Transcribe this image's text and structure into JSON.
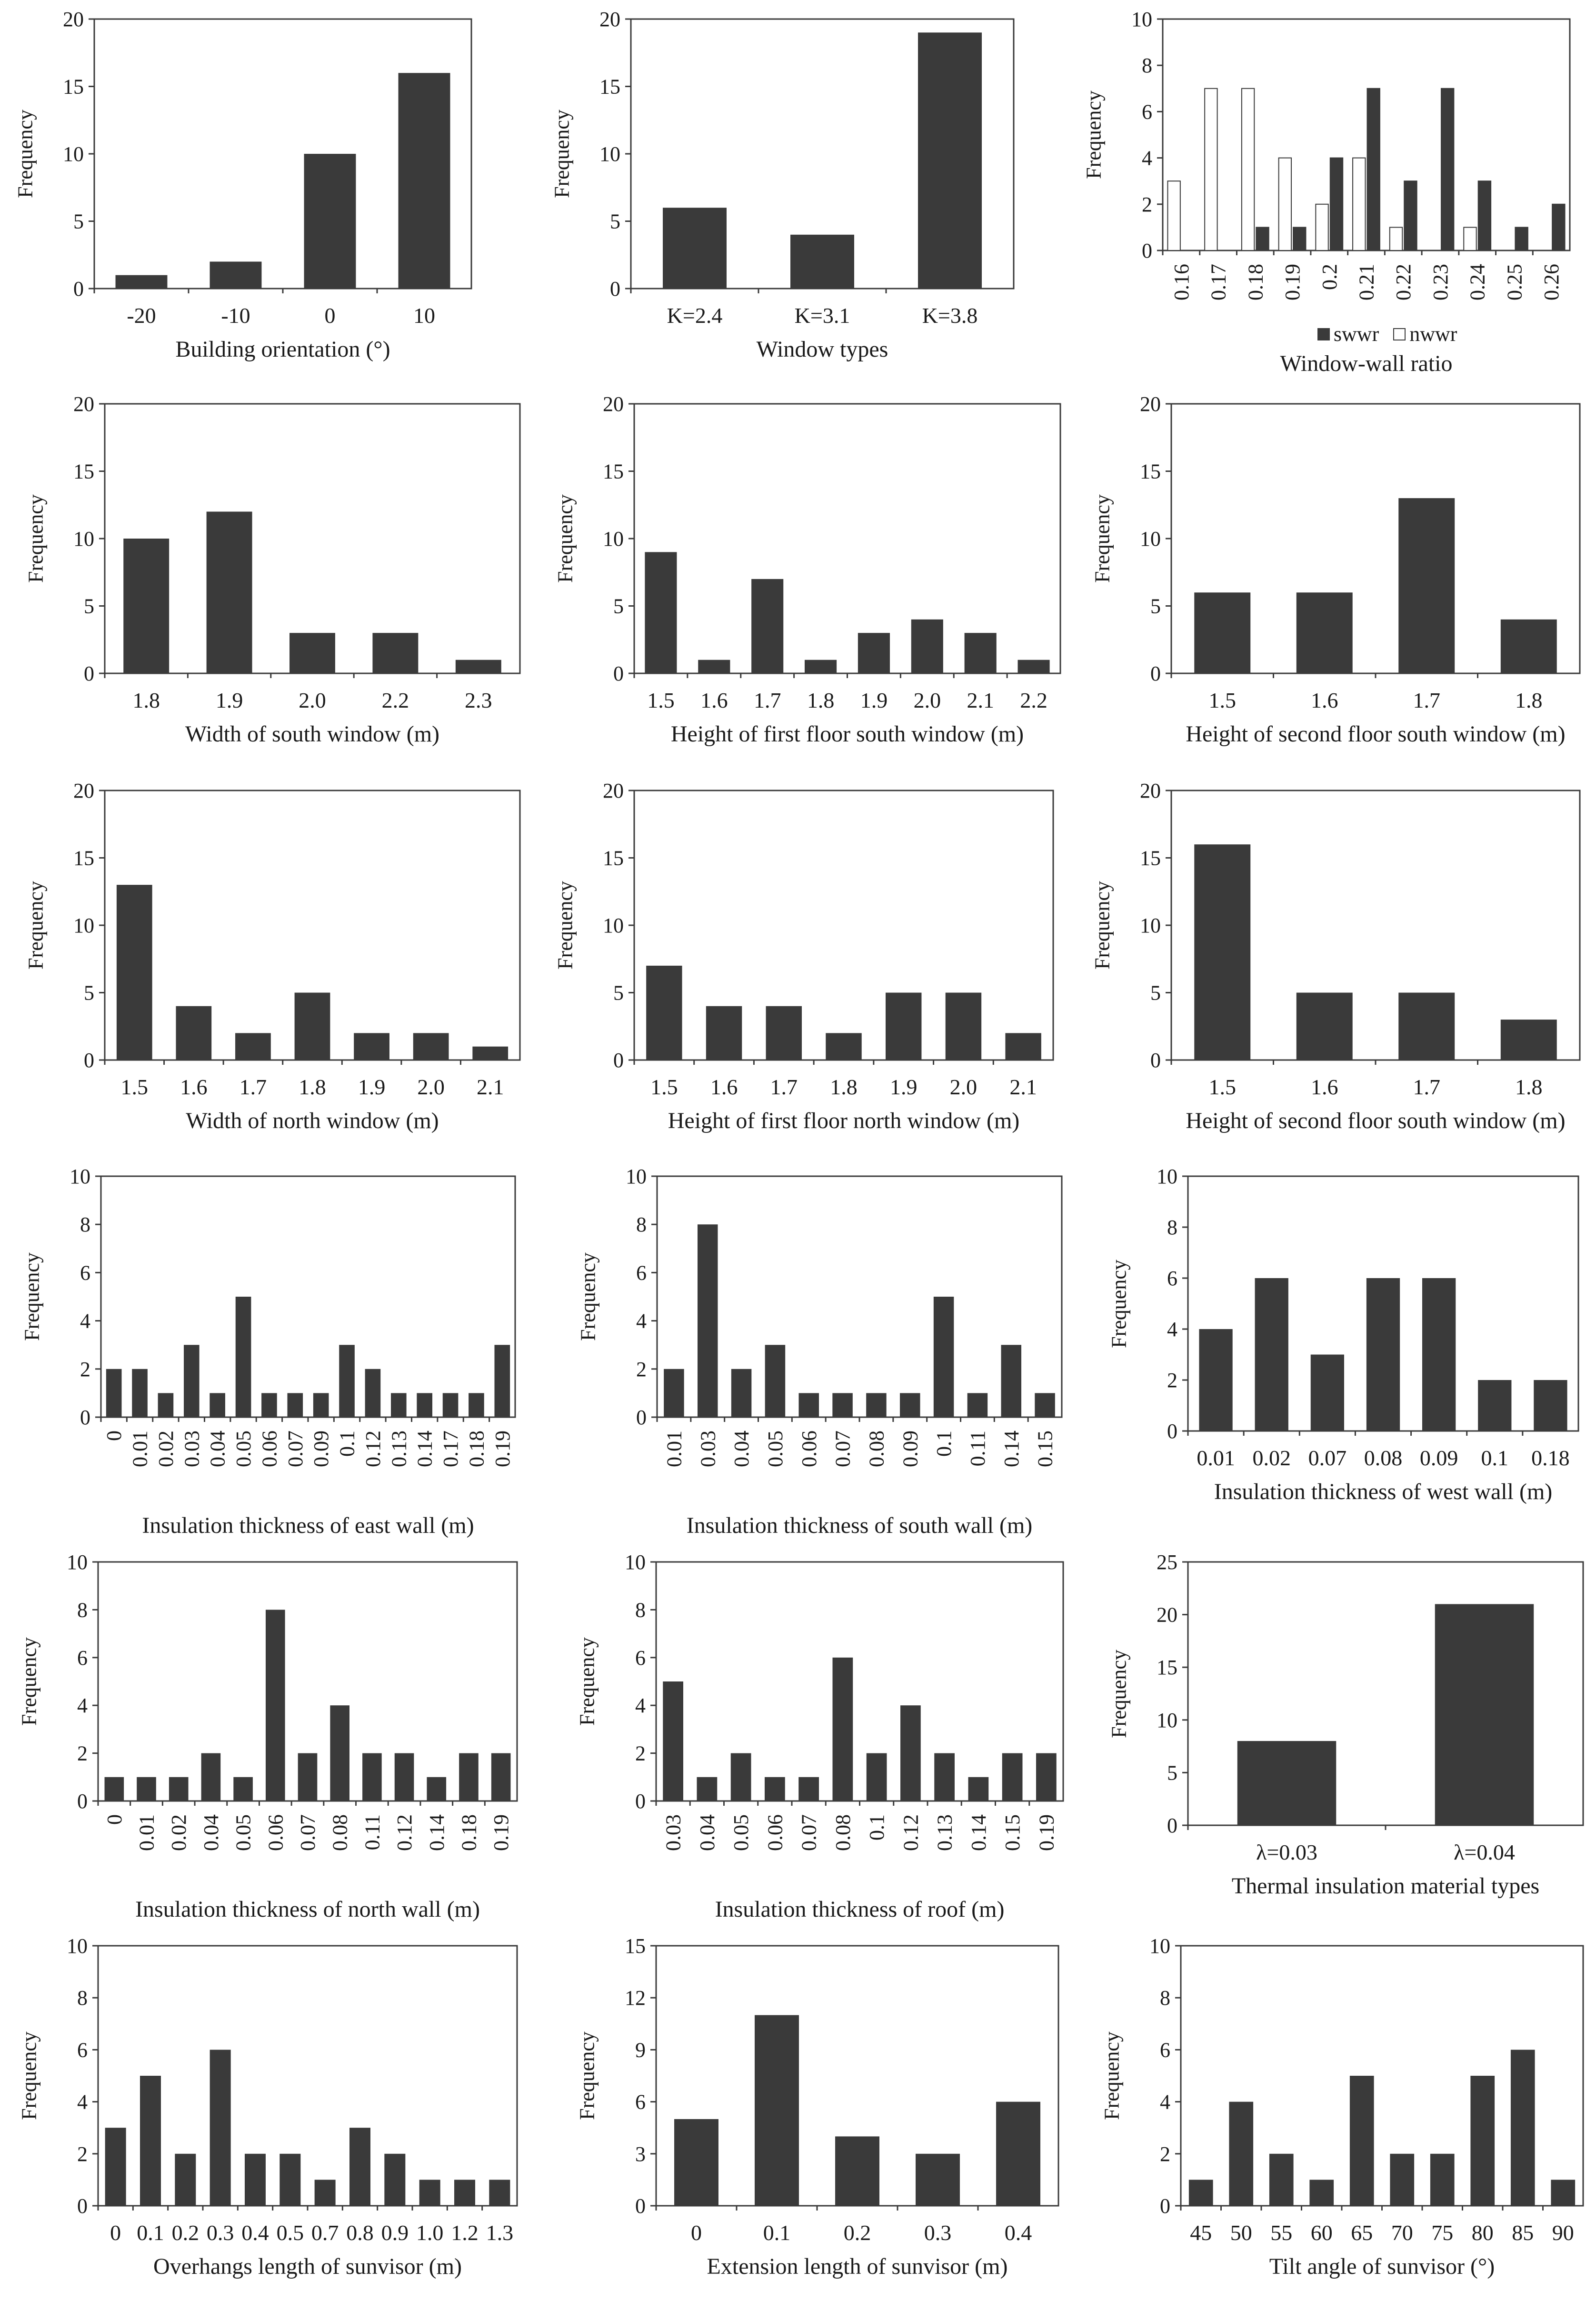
{
  "chart_data": [
    {
      "type": "bar",
      "title": "",
      "ylabel": "Frequency",
      "xlabel": "Building orientation (°)",
      "categories": [
        "-20",
        "-10",
        "0",
        "10"
      ],
      "values": [
        1,
        2,
        10,
        16
      ],
      "ylim": [
        0,
        20
      ],
      "yticks": [
        0,
        5,
        10,
        15,
        20
      ]
    },
    {
      "type": "bar",
      "title": "",
      "ylabel": "Frequency",
      "xlabel": "Window types",
      "categories": [
        "K=2.4",
        "K=3.1",
        "K=3.8"
      ],
      "values": [
        6,
        4,
        19
      ],
      "ylim": [
        0,
        20
      ],
      "yticks": [
        0,
        5,
        10,
        15,
        20
      ]
    },
    {
      "type": "bar",
      "title": "",
      "ylabel": "Frequency",
      "xlabel": "Window-wall ratio",
      "categories": [
        "0.16",
        "0.17",
        "0.18",
        "0.19",
        "0.2",
        "0.21",
        "0.22",
        "0.23",
        "0.24",
        "0.25",
        "0.26"
      ],
      "series": [
        {
          "name": "swwr",
          "color": "#3a3a3a",
          "values": [
            0,
            0,
            1,
            1,
            4,
            7,
            3,
            7,
            3,
            1,
            2
          ]
        },
        {
          "name": "nwwr",
          "color": "#ffffff",
          "values": [
            3,
            7,
            7,
            4,
            2,
            4,
            1,
            0,
            1,
            0,
            0
          ]
        }
      ],
      "ylim": [
        0,
        10
      ],
      "yticks": [
        0,
        2,
        4,
        6,
        8,
        10
      ]
    },
    {
      "type": "bar",
      "title": "",
      "ylabel": "Frequency",
      "xlabel": "Width of south window (m)",
      "categories": [
        "1.8",
        "1.9",
        "2.0",
        "2.2",
        "2.3"
      ],
      "values": [
        10,
        12,
        3,
        3,
        1
      ],
      "ylim": [
        0,
        20
      ],
      "yticks": [
        0,
        5,
        10,
        15,
        20
      ]
    },
    {
      "type": "bar",
      "title": "",
      "ylabel": "Frequency",
      "xlabel": "Height of first floor south window (m)",
      "categories": [
        "1.5",
        "1.6",
        "1.7",
        "1.8",
        "1.9",
        "2.0",
        "2.1",
        "2.2"
      ],
      "values": [
        9,
        1,
        7,
        1,
        3,
        4,
        3,
        1
      ],
      "ylim": [
        0,
        20
      ],
      "yticks": [
        0,
        5,
        10,
        15,
        20
      ]
    },
    {
      "type": "bar",
      "title": "",
      "ylabel": "Frequency",
      "xlabel": "Height of second floor south window (m)",
      "categories": [
        "1.5",
        "1.6",
        "1.7",
        "1.8"
      ],
      "values": [
        6,
        6,
        13,
        4
      ],
      "ylim": [
        0,
        20
      ],
      "yticks": [
        0,
        5,
        10,
        15,
        20
      ]
    },
    {
      "type": "bar",
      "title": "",
      "ylabel": "Frequency",
      "xlabel": "Width of north window (m)",
      "categories": [
        "1.5",
        "1.6",
        "1.7",
        "1.8",
        "1.9",
        "2.0",
        "2.1"
      ],
      "values": [
        13,
        4,
        2,
        5,
        2,
        2,
        1
      ],
      "ylim": [
        0,
        20
      ],
      "yticks": [
        0,
        5,
        10,
        15,
        20
      ]
    },
    {
      "type": "bar",
      "title": "",
      "ylabel": "Frequency",
      "xlabel": "Height of first floor north window (m)",
      "categories": [
        "1.5",
        "1.6",
        "1.7",
        "1.8",
        "1.9",
        "2.0",
        "2.1"
      ],
      "values": [
        7,
        4,
        4,
        2,
        5,
        5,
        2
      ],
      "ylim": [
        0,
        20
      ],
      "yticks": [
        0,
        5,
        10,
        15,
        20
      ]
    },
    {
      "type": "bar",
      "title": "",
      "ylabel": "Frequency",
      "xlabel": "Height of second floor south window (m)",
      "categories": [
        "1.5",
        "1.6",
        "1.7",
        "1.8"
      ],
      "values": [
        16,
        5,
        5,
        3
      ],
      "ylim": [
        0,
        20
      ],
      "yticks": [
        0,
        5,
        10,
        15,
        20
      ]
    },
    {
      "type": "bar",
      "title": "",
      "ylabel": "Frequency",
      "xlabel": "Insulation thickness of east wall (m)",
      "categories": [
        "0",
        "0.01",
        "0.02",
        "0.03",
        "0.04",
        "0.05",
        "0.06",
        "0.07",
        "0.09",
        "0.1",
        "0.12",
        "0.13",
        "0.14",
        "0.17",
        "0.18",
        "0.19"
      ],
      "values": [
        2,
        2,
        1,
        3,
        1,
        5,
        1,
        1,
        1,
        3,
        2,
        1,
        1,
        1,
        1,
        3
      ],
      "ylim": [
        0,
        10
      ],
      "yticks": [
        0,
        2,
        4,
        6,
        8,
        10
      ]
    },
    {
      "type": "bar",
      "title": "",
      "ylabel": "Frequency",
      "xlabel": "Insulation thickness of south wall (m)",
      "categories": [
        "0.01",
        "0.03",
        "0.04",
        "0.05",
        "0.06",
        "0.07",
        "0.08",
        "0.09",
        "0.1",
        "0.11",
        "0.14",
        "0.15"
      ],
      "values": [
        2,
        8,
        2,
        3,
        1,
        1,
        1,
        1,
        5,
        1,
        3,
        1
      ],
      "ylim": [
        0,
        10
      ],
      "yticks": [
        0,
        2,
        4,
        6,
        8,
        10
      ]
    },
    {
      "type": "bar",
      "title": "",
      "ylabel": "Frequency",
      "xlabel": "Insulation thickness of west wall (m)",
      "categories": [
        "0.01",
        "0.02",
        "0.07",
        "0.08",
        "0.09",
        "0.1",
        "0.18"
      ],
      "values": [
        4,
        6,
        3,
        6,
        6,
        2,
        2
      ],
      "ylim": [
        0,
        10
      ],
      "yticks": [
        0,
        2,
        4,
        6,
        8,
        10
      ]
    },
    {
      "type": "bar",
      "title": "",
      "ylabel": "Frequency",
      "xlabel": "Insulation thickness of north wall (m)",
      "categories": [
        "0",
        "0.01",
        "0.02",
        "0.04",
        "0.05",
        "0.06",
        "0.07",
        "0.08",
        "0.11",
        "0.12",
        "0.14",
        "0.18",
        "0.19"
      ],
      "values": [
        1,
        1,
        1,
        2,
        1,
        8,
        2,
        4,
        2,
        2,
        1,
        2,
        2
      ],
      "ylim": [
        0,
        10
      ],
      "yticks": [
        0,
        2,
        4,
        6,
        8,
        10
      ]
    },
    {
      "type": "bar",
      "title": "",
      "ylabel": "Frequency",
      "xlabel": "Insulation thickness of roof (m)",
      "categories": [
        "0.03",
        "0.04",
        "0.05",
        "0.06",
        "0.07",
        "0.08",
        "0.1",
        "0.12",
        "0.13",
        "0.14",
        "0.15",
        "0.19"
      ],
      "values": [
        5,
        1,
        2,
        1,
        1,
        6,
        2,
        4,
        2,
        1,
        2,
        2
      ],
      "ylim": [
        0,
        10
      ],
      "yticks": [
        0,
        2,
        4,
        6,
        8,
        10
      ]
    },
    {
      "type": "bar",
      "title": "",
      "ylabel": "Frequency",
      "xlabel": "Thermal insulation material types",
      "categories": [
        "λ=0.03",
        "λ=0.04"
      ],
      "values": [
        8,
        21
      ],
      "ylim": [
        0,
        25
      ],
      "yticks": [
        0,
        5,
        10,
        15,
        20,
        25
      ]
    },
    {
      "type": "bar",
      "title": "",
      "ylabel": "Frequency",
      "xlabel": "Overhangs length of sunvisor (m)",
      "categories": [
        "0",
        "0.1",
        "0.2",
        "0.3",
        "0.4",
        "0.5",
        "0.7",
        "0.8",
        "0.9",
        "1.0",
        "1.2",
        "1.3"
      ],
      "values": [
        3,
        5,
        2,
        6,
        2,
        2,
        1,
        3,
        2,
        1,
        1,
        1
      ],
      "ylim": [
        0,
        10
      ],
      "yticks": [
        0,
        2,
        4,
        6,
        8,
        10
      ]
    },
    {
      "type": "bar",
      "title": "",
      "ylabel": "Frequency",
      "xlabel": "Extension length of sunvisor (m)",
      "categories": [
        "0",
        "0.1",
        "0.2",
        "0.3",
        "0.4"
      ],
      "values": [
        5,
        11,
        4,
        3,
        6
      ],
      "ylim": [
        0,
        15
      ],
      "yticks": [
        0,
        3,
        6,
        9,
        12,
        15
      ]
    },
    {
      "type": "bar",
      "title": "",
      "ylabel": "Frequency",
      "xlabel": "Tilt angle of sunvisor (°)",
      "categories": [
        "45",
        "50",
        "55",
        "60",
        "65",
        "70",
        "75",
        "80",
        "85",
        "90"
      ],
      "values": [
        1,
        4,
        2,
        1,
        5,
        2,
        2,
        5,
        6,
        1
      ],
      "ylim": [
        0,
        10
      ],
      "yticks": [
        0,
        2,
        4,
        6,
        8,
        10
      ]
    }
  ],
  "style": {
    "bar_color": "#3a3a3a",
    "axis_color": "#3a3a3a",
    "background": "#ffffff"
  }
}
